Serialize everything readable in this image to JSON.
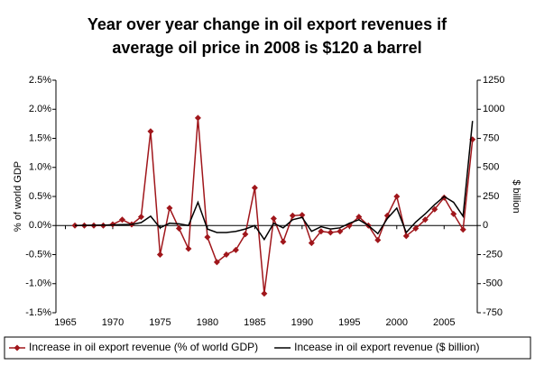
{
  "chart_data": {
    "type": "line",
    "title": "Year over year change in oil export revenues if average oil price in 2008 is $120 a barrel",
    "ylabel": "% of world GDP",
    "y2label": "$ billion",
    "xlim": [
      1964,
      2008.5
    ],
    "xticks": [
      1965,
      1970,
      1975,
      1980,
      1985,
      1990,
      1995,
      2000,
      2005
    ],
    "ylim": [
      -1.5,
      2.5
    ],
    "yticks": [
      {
        "value": -1.5,
        "label": "-1.5%"
      },
      {
        "value": -1.0,
        "label": "-1.0%"
      },
      {
        "value": -0.5,
        "label": "-0.5%"
      },
      {
        "value": 0,
        "label": "0.0%"
      },
      {
        "value": 0.5,
        "label": "0.5%"
      },
      {
        "value": 1.0,
        "label": "1.0%"
      },
      {
        "value": 1.5,
        "label": "1.5%"
      },
      {
        "value": 2.0,
        "label": "2.0%"
      },
      {
        "value": 2.5,
        "label": "2.5%"
      }
    ],
    "y2lim": [
      -750,
      1250
    ],
    "y2ticks": [
      -750,
      -500,
      -250,
      0,
      250,
      500,
      750,
      1000,
      1250
    ],
    "legend": "bottom",
    "x": [
      1966,
      1967,
      1968,
      1969,
      1970,
      1971,
      1972,
      1973,
      1974,
      1975,
      1976,
      1977,
      1978,
      1979,
      1980,
      1981,
      1982,
      1983,
      1984,
      1985,
      1986,
      1987,
      1988,
      1989,
      1990,
      1991,
      1992,
      1993,
      1994,
      1995,
      1996,
      1997,
      1998,
      1999,
      2000,
      2001,
      2002,
      2003,
      2004,
      2005,
      2006,
      2007,
      2008
    ],
    "series": [
      {
        "name": "Increase in oil export revenue (% of world GDP)",
        "color": "#a0161b",
        "marker": "diamond",
        "values": [
          0,
          0,
          0,
          0,
          0.02,
          0.1,
          0.02,
          0.15,
          1.62,
          -0.5,
          0.3,
          -0.05,
          -0.4,
          1.85,
          -0.2,
          -0.63,
          -0.5,
          -0.42,
          -0.15,
          0.65,
          -1.17,
          0.12,
          -0.28,
          0.17,
          0.18,
          -0.3,
          -0.1,
          -0.12,
          -0.1,
          0,
          0.15,
          0,
          -0.25,
          0.17,
          0.5,
          -0.18,
          -0.05,
          0.1,
          0.28,
          0.48,
          0.2,
          -0.07,
          1.48
        ]
      },
      {
        "name": "Incease in oil export revenue ($ billion)",
        "color": "#000000",
        "axis": "y2",
        "values": [
          0,
          2,
          3,
          4,
          5,
          8,
          10,
          25,
          80,
          -20,
          20,
          15,
          0,
          200,
          -30,
          -60,
          -60,
          -50,
          -30,
          0,
          -120,
          20,
          -20,
          50,
          70,
          -50,
          -10,
          -30,
          -20,
          20,
          50,
          0,
          -70,
          60,
          150,
          -60,
          30,
          100,
          180,
          250,
          200,
          80,
          900
        ]
      }
    ]
  }
}
